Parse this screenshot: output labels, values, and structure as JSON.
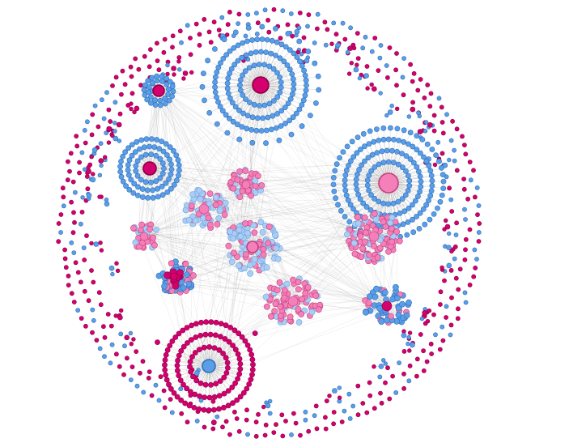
{
  "diagram": {
    "type": "network-graph",
    "title": "",
    "layout": "force-directed-circle",
    "background": "#ffffff",
    "colors": {
      "magenta": "#d4006e",
      "magenta_stroke": "#8a0046",
      "blue": "#5b9ee8",
      "blue_stroke": "#2f6fb8",
      "light_blue": "#a9cdf5",
      "light_blue_stroke": "#6fa3dc",
      "pink": "#f57fb8",
      "pink_stroke": "#c2407f",
      "edge": "#888888"
    },
    "node_types": [
      "magenta",
      "blue",
      "light_blue",
      "pink"
    ],
    "clusters": [
      {
        "id": "hub-top-center",
        "hub_color": "magenta",
        "leaf_color": "blue",
        "leaf_count": 150
      },
      {
        "id": "hub-right",
        "hub_color": "pink",
        "leaf_color": "blue",
        "leaf_count": 170
      },
      {
        "id": "hub-left",
        "hub_color": "magenta",
        "leaf_color": "blue",
        "leaf_count": 80
      },
      {
        "id": "hub-top-left",
        "hub_color": "magenta",
        "leaf_color": "blue",
        "leaf_count": 30
      },
      {
        "id": "hub-bottom",
        "hub_color": "blue",
        "leaf_color": "magenta",
        "leaf_count": 120
      },
      {
        "id": "cluster-dense-left",
        "hub_color": "magenta",
        "leaf_color": "blue",
        "leaf_count": 60
      },
      {
        "id": "cluster-central-lightblue",
        "hub_color": "pink",
        "leaf_color": "light_blue",
        "leaf_count": 110
      },
      {
        "id": "cluster-lightblue-upper",
        "hub_color": "pink",
        "leaf_color": "light_blue",
        "leaf_count": 70
      },
      {
        "id": "cluster-pink-right",
        "hub_color": "pink",
        "leaf_color": "pink",
        "leaf_count": 110
      },
      {
        "id": "cluster-mixed-bottom-right",
        "hub_color": "magenta",
        "leaf_color": "blue",
        "leaf_count": 60
      },
      {
        "id": "cluster-pink-center-bottom",
        "hub_color": "pink",
        "leaf_color": "pink",
        "leaf_count": 80
      },
      {
        "id": "cluster-upper-pink",
        "hub_color": "pink",
        "leaf_color": "pink",
        "leaf_count": 45
      },
      {
        "id": "cluster-pink-left",
        "hub_color": "pink",
        "leaf_color": "pink",
        "leaf_count": 35
      }
    ]
  }
}
